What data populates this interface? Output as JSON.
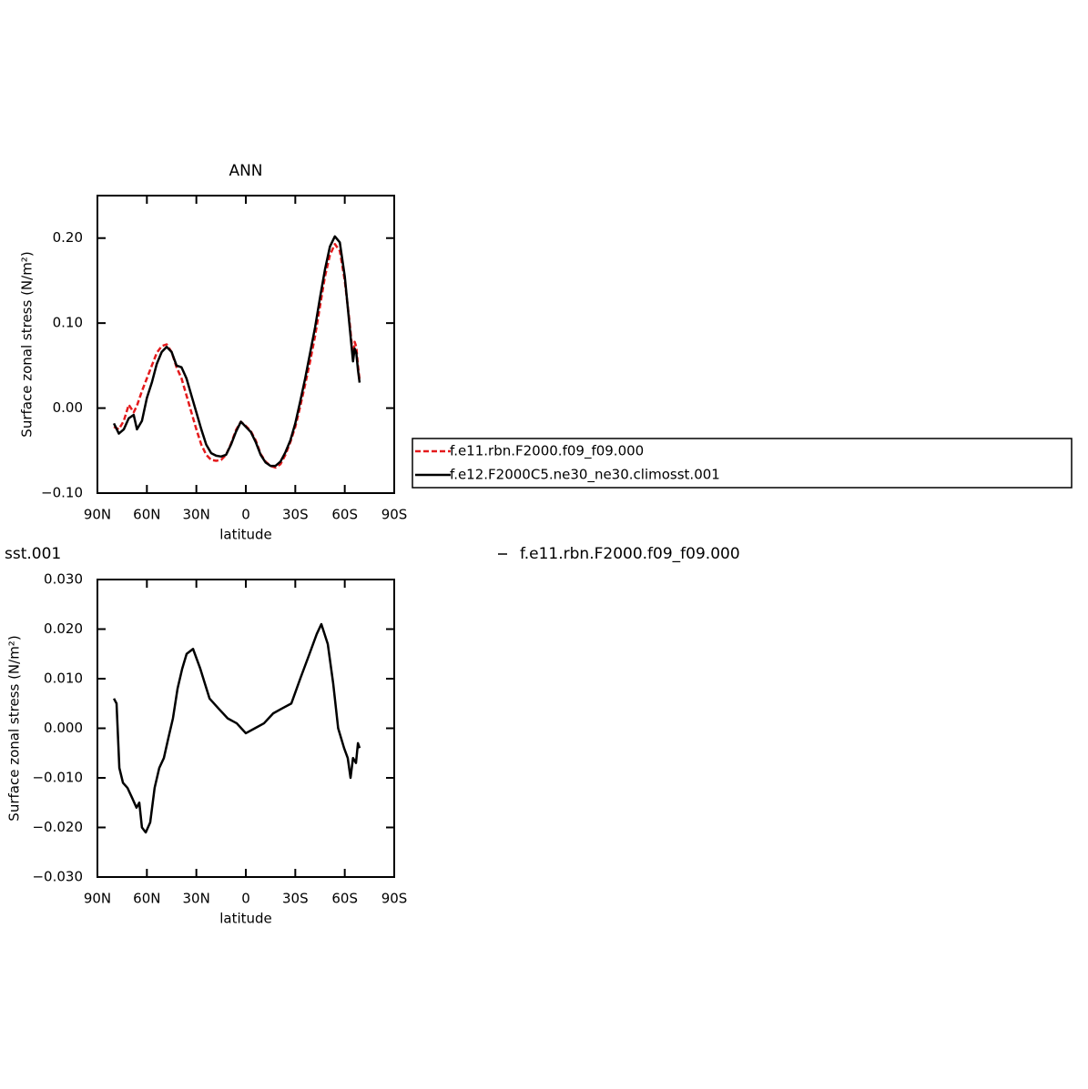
{
  "chart_data": [
    {
      "type": "line",
      "title": "ANN",
      "xlabel": "latitude",
      "ylabel": "Surface zonal stress (N/m²)",
      "x": [
        80,
        77,
        74,
        71,
        68,
        66,
        63,
        60,
        57,
        54,
        51,
        48,
        45,
        42,
        39,
        36,
        33,
        30,
        27,
        24,
        21,
        18,
        15,
        12,
        9,
        6,
        3,
        0,
        -3,
        -6,
        -9,
        -12,
        -15,
        -18,
        -21,
        -24,
        -27,
        -30,
        -33,
        -36,
        -39,
        -42,
        -45,
        -48,
        -51,
        -54,
        -57,
        -60,
        -63,
        -65,
        -66,
        -67,
        -68,
        -69
      ],
      "series": [
        {
          "name": "f.e11.rbn.F2000.f09_f09.000",
          "color": "#e41a1c",
          "dashed": true,
          "values": [
            -0.022,
            -0.025,
            -0.015,
            0.004,
            -0.005,
            0.003,
            0.02,
            0.035,
            0.05,
            0.065,
            0.073,
            0.075,
            0.066,
            0.048,
            0.035,
            0.015,
            -0.005,
            -0.025,
            -0.043,
            -0.055,
            -0.061,
            -0.062,
            -0.061,
            -0.055,
            -0.042,
            -0.026,
            -0.016,
            -0.021,
            -0.027,
            -0.038,
            -0.054,
            -0.063,
            -0.068,
            -0.07,
            -0.066,
            -0.055,
            -0.04,
            -0.022,
            0.002,
            0.028,
            0.055,
            0.085,
            0.12,
            0.155,
            0.18,
            0.193,
            0.185,
            0.15,
            0.1,
            0.06,
            0.078,
            0.072,
            0.05,
            0.033
          ]
        },
        {
          "name": "f.e12.F2000C5.ne30_ne30.climosst.001",
          "color": "#000000",
          "dashed": false,
          "values": [
            -0.018,
            -0.03,
            -0.025,
            -0.012,
            -0.008,
            -0.025,
            -0.015,
            0.012,
            0.03,
            0.052,
            0.066,
            0.072,
            0.066,
            0.05,
            0.048,
            0.035,
            0.015,
            -0.005,
            -0.025,
            -0.043,
            -0.053,
            -0.056,
            -0.057,
            -0.055,
            -0.043,
            -0.028,
            -0.016,
            -0.022,
            -0.028,
            -0.04,
            -0.055,
            -0.064,
            -0.068,
            -0.068,
            -0.063,
            -0.052,
            -0.038,
            -0.018,
            0.008,
            0.035,
            0.065,
            0.095,
            0.13,
            0.163,
            0.19,
            0.202,
            0.195,
            0.155,
            0.095,
            0.055,
            0.07,
            0.065,
            0.045,
            0.03
          ]
        }
      ],
      "xlim": [
        90,
        -90
      ],
      "xticks": [
        {
          "value": 90,
          "label": "90N"
        },
        {
          "value": 60,
          "label": "60N"
        },
        {
          "value": 30,
          "label": "30N"
        },
        0,
        {
          "value": -30,
          "label": "30S"
        },
        {
          "value": -60,
          "label": "60S"
        },
        {
          "value": -90,
          "label": "90S"
        }
      ],
      "ylim": [
        -0.1,
        0.25
      ],
      "yticks": [
        {
          "value": -0.1,
          "label": "−0.10"
        },
        {
          "value": 0,
          "label": "0.00"
        },
        {
          "value": 0.1,
          "label": "0.10"
        },
        {
          "value": 0.2,
          "label": "0.20"
        }
      ]
    },
    {
      "type": "line",
      "title": "sst.001",
      "subtitle": "f.e11.rbn.F2000.f09_f09.000",
      "xlabel": "latitude",
      "ylabel": "Surface zonal stress (N/m²)",
      "x": [
        80,
        78.4,
        76.7,
        74.5,
        71.8,
        69,
        66.3,
        64.6,
        63,
        60.7,
        58,
        55.3,
        52.5,
        49.7,
        47,
        44.2,
        41.4,
        38.6,
        35.9,
        32,
        27.6,
        24.8,
        22,
        16.6,
        11,
        5.5,
        0,
        -5.5,
        -11,
        -16.6,
        -22,
        -27.6,
        -33,
        -38.6,
        -43,
        -45.8,
        -49.7,
        -53,
        -56,
        -59.6,
        -61.8,
        -63.5,
        -65,
        -66.8,
        -68,
        -69
      ],
      "series": [
        {
          "color": "#000000",
          "dashed": false,
          "values": [
            0.006,
            0.005,
            -0.008,
            -0.011,
            -0.012,
            -0.014,
            -0.016,
            -0.015,
            -0.02,
            -0.021,
            -0.019,
            -0.012,
            -0.008,
            -0.006,
            -0.002,
            0.002,
            0.008,
            0.012,
            0.015,
            0.016,
            0.012,
            0.009,
            0.006,
            0.004,
            0.002,
            0.001,
            -0.001,
            0,
            0.001,
            0.003,
            0.004,
            0.005,
            0.01,
            0.015,
            0.019,
            0.021,
            0.017,
            0.009,
            0,
            -0.004,
            -0.006,
            -0.01,
            -0.006,
            -0.007,
            -0.003,
            -0.004
          ]
        }
      ],
      "xlim": [
        90,
        -90
      ],
      "xticks": [
        {
          "value": 90,
          "label": "90N"
        },
        {
          "value": 60,
          "label": "60N"
        },
        {
          "value": 30,
          "label": "30N"
        },
        0,
        {
          "value": -30,
          "label": "30S"
        },
        {
          "value": -60,
          "label": "60S"
        },
        {
          "value": -90,
          "label": "90S"
        }
      ],
      "ylim": [
        -0.03,
        0.03
      ],
      "yticks": [
        {
          "value": -0.03,
          "label": "−0.030"
        },
        {
          "value": -0.02,
          "label": "−0.020"
        },
        {
          "value": -0.01,
          "label": "−0.010"
        },
        {
          "value": 0,
          "label": "0.000"
        },
        {
          "value": 0.01,
          "label": "0.010"
        },
        {
          "value": 0.02,
          "label": "0.020"
        },
        {
          "value": 0.03,
          "label": "0.030"
        }
      ]
    }
  ]
}
